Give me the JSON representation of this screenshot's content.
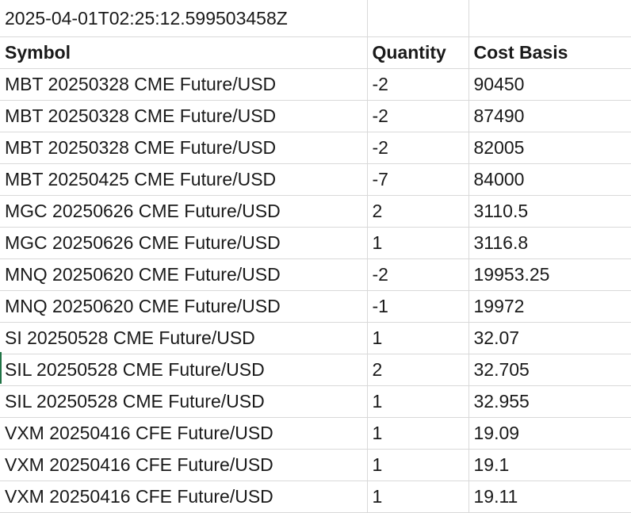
{
  "timestamp": "2025-04-01T02:25:12.599503458Z",
  "headers": {
    "symbol": "Symbol",
    "quantity": "Quantity",
    "cost_basis": "Cost Basis"
  },
  "rows": [
    {
      "symbol": "MBT 20250328 CME Future/USD",
      "quantity": "-2",
      "cost_basis": "90450"
    },
    {
      "symbol": "MBT 20250328 CME Future/USD",
      "quantity": "-2",
      "cost_basis": "87490"
    },
    {
      "symbol": "MBT 20250328 CME Future/USD",
      "quantity": "-2",
      "cost_basis": "82005"
    },
    {
      "symbol": "MBT 20250425 CME Future/USD",
      "quantity": "-7",
      "cost_basis": "84000"
    },
    {
      "symbol": "MGC 20250626 CME Future/USD",
      "quantity": "2",
      "cost_basis": "3110.5"
    },
    {
      "symbol": "MGC 20250626 CME Future/USD",
      "quantity": "1",
      "cost_basis": "3116.8"
    },
    {
      "symbol": "MNQ 20250620 CME Future/USD",
      "quantity": "-2",
      "cost_basis": "19953.25"
    },
    {
      "symbol": "MNQ 20250620 CME Future/USD",
      "quantity": "-1",
      "cost_basis": "19972"
    },
    {
      "symbol": "SI 20250528 CME Future/USD",
      "quantity": "1",
      "cost_basis": "32.07"
    },
    {
      "symbol": "SIL 20250528 CME Future/USD",
      "quantity": "2",
      "cost_basis": "32.705"
    },
    {
      "symbol": "SIL 20250528 CME Future/USD",
      "quantity": "1",
      "cost_basis": "32.955"
    },
    {
      "symbol": "VXM 20250416 CFE Future/USD",
      "quantity": "1",
      "cost_basis": "19.09"
    },
    {
      "symbol": "VXM 20250416 CFE Future/USD",
      "quantity": "1",
      "cost_basis": "19.1"
    },
    {
      "symbol": "VXM 20250416 CFE Future/USD",
      "quantity": "1",
      "cost_basis": "19.11"
    }
  ],
  "colors": {
    "gridline": "#d9d9d9",
    "active_cell_marker": "#217346"
  }
}
